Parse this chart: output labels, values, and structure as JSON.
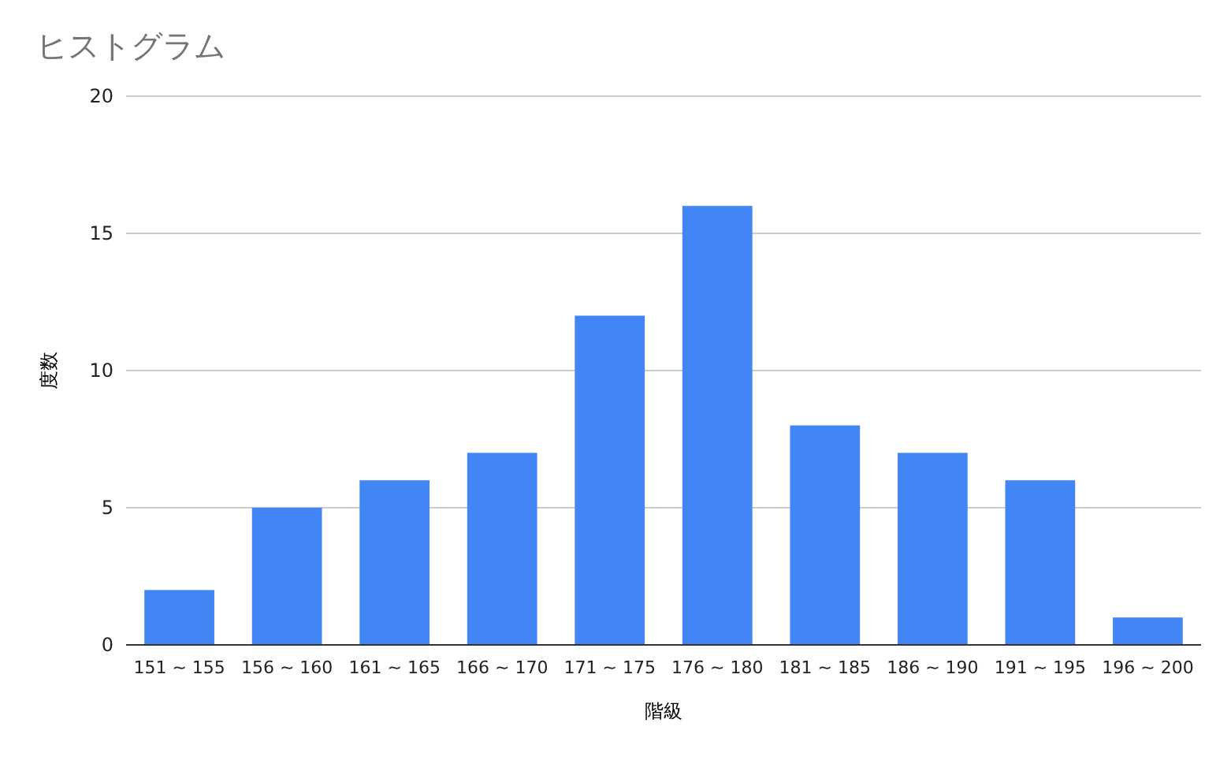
{
  "chart_data": {
    "type": "bar",
    "title": "ヒストグラム",
    "xlabel": "階級",
    "ylabel": "度数",
    "categories": [
      "151 ~ 155",
      "156 ~ 160",
      "161 ~ 165",
      "166 ~ 170",
      "171 ~ 175",
      "176 ~ 180",
      "181 ~ 185",
      "186 ~ 190",
      "191 ~ 195",
      "196 ~ 200"
    ],
    "values": [
      2,
      5,
      6,
      7,
      12,
      16,
      8,
      7,
      6,
      1
    ],
    "color": "#4285f4",
    "ylim": [
      0,
      20
    ],
    "yticks": [
      0,
      5,
      10,
      15,
      20
    ],
    "grid": "y"
  }
}
